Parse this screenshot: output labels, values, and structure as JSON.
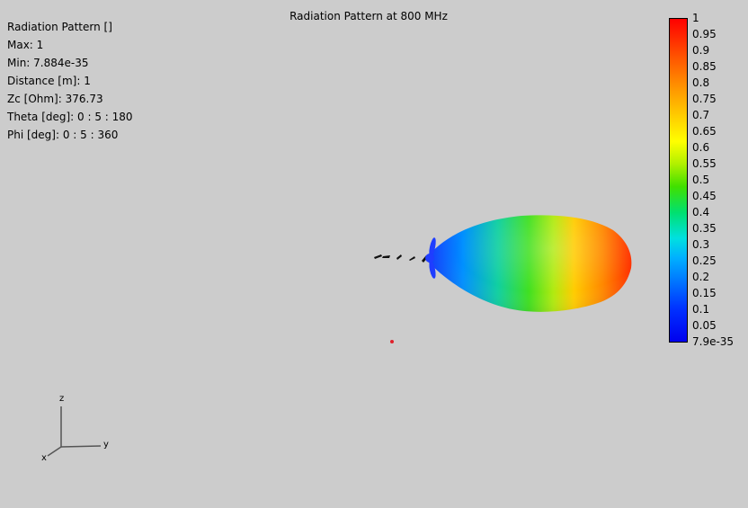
{
  "title": "Radiation Pattern at 800 MHz",
  "info": {
    "name": "Radiation Pattern []",
    "max": "Max: 1",
    "min": "Min: 7.884e-35",
    "distance": "Distance [m]: 1",
    "zc": "Zc [Ohm]: 376.73",
    "theta": "Theta [deg]: 0 : 5 : 180",
    "phi": "Phi [deg]: 0 : 5 : 360"
  },
  "colorbar": {
    "labels": [
      "1",
      "0.95",
      "0.9",
      "0.85",
      "0.8",
      "0.75",
      "0.7",
      "0.65",
      "0.6",
      "0.55",
      "0.5",
      "0.45",
      "0.4",
      "0.35",
      "0.3",
      "0.25",
      "0.2",
      "0.15",
      "0.1",
      "0.05",
      "7.9e-35"
    ]
  },
  "axes": {
    "x": "x",
    "y": "y",
    "z": "z"
  },
  "colors": {
    "background": "#cccccc",
    "marker": "#e0202a"
  }
}
